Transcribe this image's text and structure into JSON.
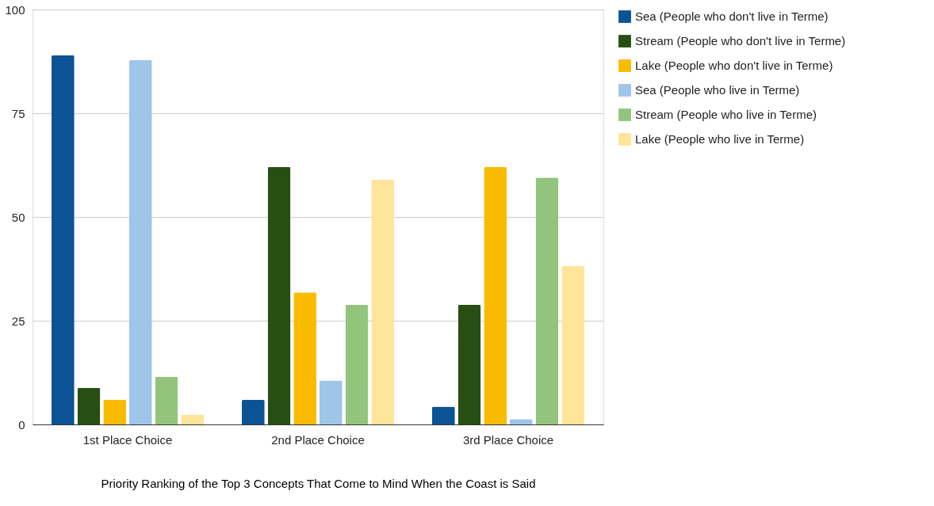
{
  "chart_data": {
    "type": "bar",
    "xlabel": "Priority Ranking of the Top 3 Concepts That Come to Mind When the Coast is Said",
    "categories": [
      "1st Place Choice",
      "2nd Place Choice",
      "3rd Place Choice"
    ],
    "series": [
      {
        "name": "Sea (People who don't live in Terme)",
        "color": "#0b5394",
        "values": [
          89,
          5.9,
          4.3
        ]
      },
      {
        "name": "Stream (People who don't live in Terme)",
        "color": "#274e13",
        "values": [
          8.8,
          62,
          28.8
        ]
      },
      {
        "name": "Lake (People who don't live in Terme)",
        "color": "#f9bb00",
        "values": [
          5.9,
          31.8,
          62
        ]
      },
      {
        "name": "Sea (People who live in Terme)",
        "color": "#9fc5e8",
        "values": [
          87.8,
          10.6,
          1.3
        ]
      },
      {
        "name": "Stream (People who live in Terme)",
        "color": "#93c47d",
        "values": [
          11.5,
          28.8,
          59.5
        ]
      },
      {
        "name": "Lake (People who live in Terme)",
        "color": "#ffe599",
        "values": [
          2.4,
          59,
          38.2
        ]
      }
    ],
    "ylim": [
      0,
      100
    ],
    "yticks": [
      0,
      25,
      50,
      75,
      100
    ],
    "grid": "y",
    "legend": "right"
  }
}
